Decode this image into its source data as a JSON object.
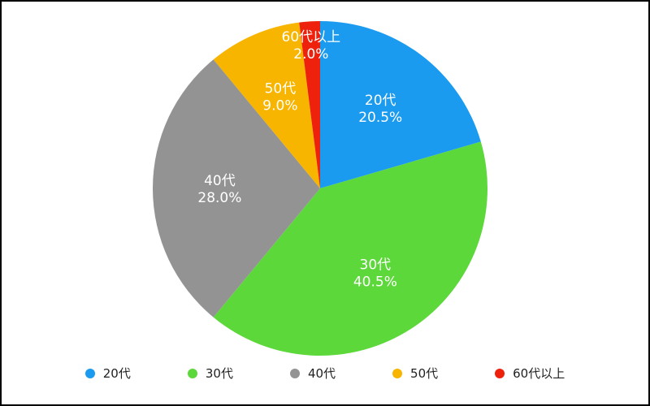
{
  "chart_data": {
    "type": "pie",
    "categories": [
      "20代",
      "30代",
      "40代",
      "50代",
      "60代以上"
    ],
    "values": [
      20.5,
      40.5,
      28.0,
      9.0,
      2.0
    ],
    "value_labels": [
      "20.5%",
      "40.5%",
      "28.0%",
      "9.0%",
      "2.0%"
    ],
    "colors": [
      "#1a9bf0",
      "#5dd83a",
      "#939393",
      "#f7b500",
      "#ee220c"
    ],
    "start": "12 o'clock",
    "direction": "clockwise",
    "legend": "bottom"
  }
}
